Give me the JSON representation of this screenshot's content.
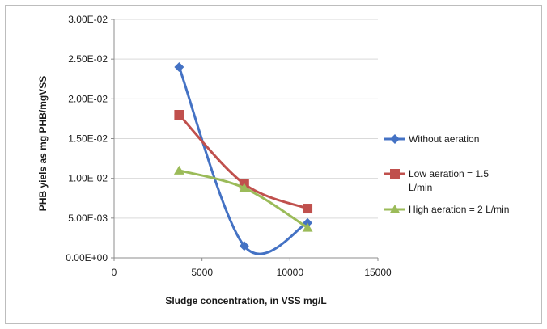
{
  "chart_data": {
    "type": "line",
    "title": "",
    "xlabel": "Sludge concentration, in VSS mg/L",
    "ylabel": "PHB yiels as mg PHB/mgVSS",
    "xlim": [
      0,
      15000
    ],
    "ylim": [
      0,
      0.03
    ],
    "x_ticks": [
      0,
      5000,
      10000,
      15000
    ],
    "y_ticks": [
      0,
      0.005,
      0.01,
      0.015,
      0.02,
      0.025,
      0.03
    ],
    "x_tick_labels": [
      "0",
      "5000",
      "10000",
      "15000"
    ],
    "y_tick_labels": [
      "0.00E+00",
      "5.00E-03",
      "1.00E-02",
      "1.50E-02",
      "2.00E-02",
      "2.50E-02",
      "3.00E-02"
    ],
    "grid": "horizontal",
    "legend_position": "right",
    "smoothed": true,
    "series": [
      {
        "name": "Without aeration",
        "legend_lines": [
          "Without aeration"
        ],
        "color": "#4472C4",
        "marker": "diamond",
        "x": [
          3700,
          7400,
          11000
        ],
        "y": [
          0.024,
          0.0015,
          0.0044
        ]
      },
      {
        "name": "Low aeration = 1.5 L/min",
        "legend_lines": [
          "Low aeration = 1.5",
          "L/min"
        ],
        "color": "#C0504D",
        "marker": "square",
        "x": [
          3700,
          7400,
          11000
        ],
        "y": [
          0.018,
          0.0093,
          0.0062
        ]
      },
      {
        "name": "High aeration = 2 L/min",
        "legend_lines": [
          "High aeration = 2 L/min"
        ],
        "color": "#9BBB59",
        "marker": "triangle",
        "x": [
          3700,
          7400,
          11000
        ],
        "y": [
          0.011,
          0.0088,
          0.0038
        ]
      }
    ]
  }
}
